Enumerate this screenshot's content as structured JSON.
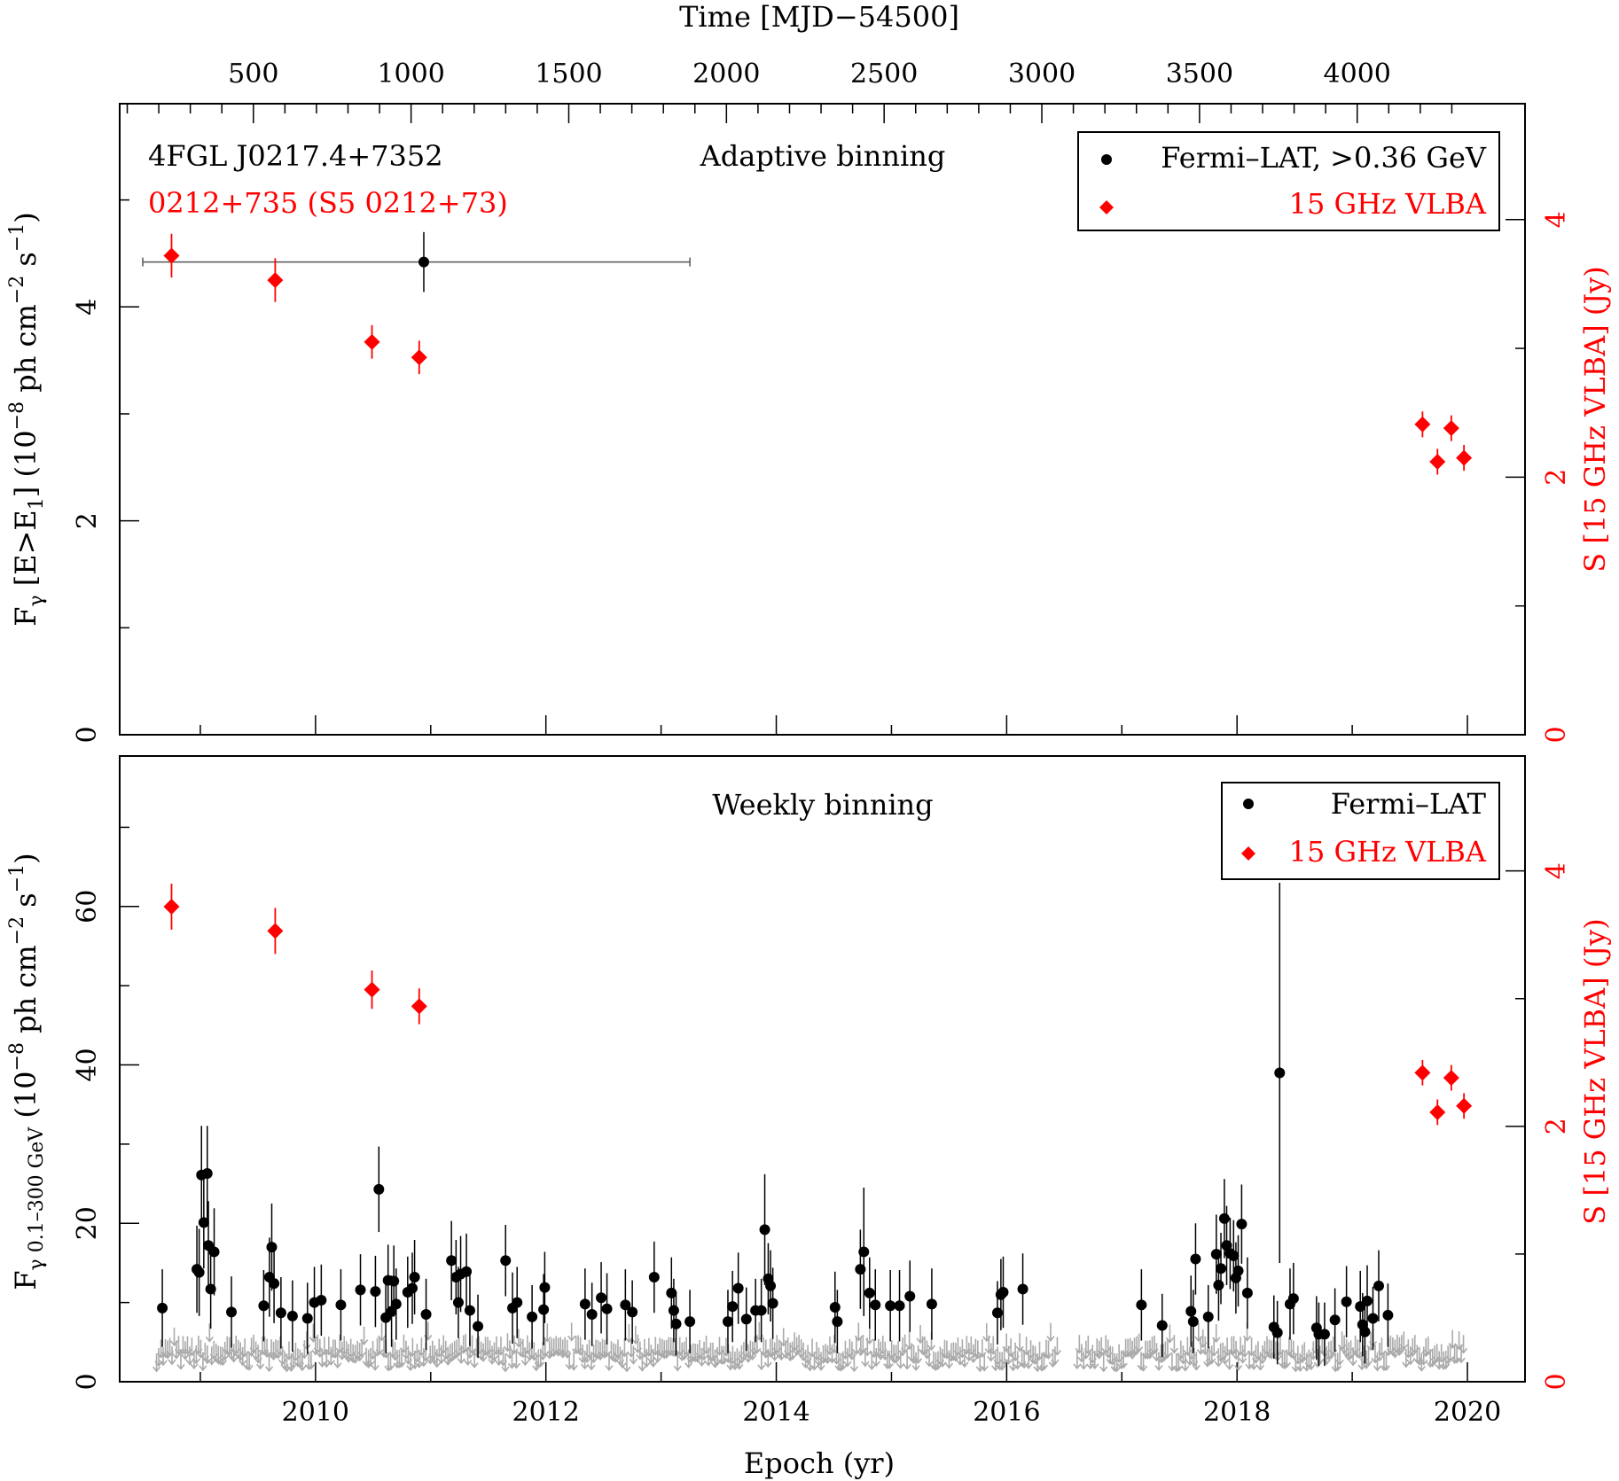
{
  "colors": {
    "fermi": "#000000",
    "vlba": "#ff0000",
    "upper_limit": "#aaaaaa",
    "axis": "#000000"
  },
  "top_axis": {
    "label": "Time [MJD−54500]",
    "ticks": [
      500,
      1000,
      1500,
      2000,
      2500,
      3000,
      3500,
      4000
    ],
    "tick_labels": [
      "500",
      "1000",
      "1500",
      "2000",
      "2500",
      "3000",
      "3500",
      "4000"
    ],
    "mjd_offset": 54500
  },
  "bottom_axis": {
    "label": "Epoch (yr)",
    "ticks": [
      2010,
      2012,
      2014,
      2016,
      2018,
      2020
    ],
    "tick_labels": [
      "2010",
      "2012",
      "2014",
      "2016",
      "2018",
      "2020"
    ],
    "xlim": [
      2008.3,
      2020.5
    ]
  },
  "panels": {
    "top": {
      "source_name": "4FGL J0217.4+7352",
      "radio_name": "0212+735 (S5 0212+73)",
      "binning_label": "Adaptive binning",
      "ylabel": {
        "main": "F",
        "sub1": "γ",
        "mid": " [E>E",
        "sub2": "1",
        "end": "] (10",
        "sup1": "−8",
        "end2": " ph cm",
        "sup2": "−2",
        "end3": " s",
        "sup3": "−1",
        "end4": ")"
      },
      "yticks": [
        0,
        2,
        4
      ],
      "ytick_labels": [
        "0",
        "2",
        "4"
      ],
      "ylim": [
        0,
        5.9
      ],
      "y2label": "S [15 GHz VLBA] (Jy)",
      "y2ticks": [
        0,
        2,
        4
      ],
      "y2tick_labels": [
        "0",
        "2",
        "4"
      ],
      "y2lim": [
        0,
        4.9
      ],
      "legend": {
        "fermi_label": "Fermi–LAT, >0.36 GeV",
        "vlba_label": "15 GHz VLBA"
      }
    },
    "bottom": {
      "binning_label": "Weekly binning",
      "ylabel": {
        "main": "F",
        "sub1": "γ 0.1–300 GeV",
        "end": " (10",
        "sup1": "−8",
        "end2": " ph cm",
        "sup2": "−2",
        "end3": " s",
        "sup3": "−1",
        "end4": ")"
      },
      "yticks": [
        0,
        20,
        40,
        60
      ],
      "ytick_labels": [
        "0",
        "20",
        "40",
        "60"
      ],
      "ylim": [
        0,
        79
      ],
      "y2label": "S [15 GHz VLBA] (Jy)",
      "y2ticks": [
        0,
        2,
        4
      ],
      "y2tick_labels": [
        "0",
        "2",
        "4"
      ],
      "y2lim": [
        0,
        4.9
      ],
      "legend": {
        "fermi_label": "Fermi–LAT",
        "vlba_label": "15 GHz VLBA"
      }
    }
  },
  "chart_data": [
    {
      "type": "scatter",
      "panel": "top",
      "series": [
        {
          "name": "Fermi–LAT, >0.36 GeV",
          "points": [
            {
              "x": 2010.94,
              "y": 4.42,
              "yerr": 0.28,
              "xmin": 2008.5,
              "xmax": 2013.25
            }
          ]
        },
        {
          "name": "15 GHz VLBA",
          "axis": "right",
          "points": [
            {
              "x": 2008.75,
              "y": 3.72,
              "yerr": 0.17
            },
            {
              "x": 2009.65,
              "y": 3.53,
              "yerr": 0.17
            },
            {
              "x": 2010.49,
              "y": 3.05,
              "yerr": 0.13
            },
            {
              "x": 2010.9,
              "y": 2.93,
              "yerr": 0.13
            },
            {
              "x": 2019.61,
              "y": 2.41,
              "yerr": 0.1
            },
            {
              "x": 2019.74,
              "y": 2.12,
              "yerr": 0.1
            },
            {
              "x": 2019.86,
              "y": 2.38,
              "yerr": 0.1
            },
            {
              "x": 2019.97,
              "y": 2.15,
              "yerr": 0.1
            }
          ]
        }
      ]
    },
    {
      "type": "scatter",
      "panel": "bottom",
      "series": [
        {
          "name": "Fermi–LAT",
          "points": [
            {
              "x": 2008.67,
              "y": 9.3,
              "e": 4.9
            },
            {
              "x": 2008.97,
              "y": 14.2,
              "e": 5.5
            },
            {
              "x": 2008.99,
              "y": 13.8,
              "e": 5.5
            },
            {
              "x": 2009.01,
              "y": 26.1,
              "e": 6.2
            },
            {
              "x": 2009.03,
              "y": 20.1,
              "e": 5.8
            },
            {
              "x": 2009.06,
              "y": 26.3,
              "e": 6.0
            },
            {
              "x": 2009.07,
              "y": 17.2,
              "e": 5.6
            },
            {
              "x": 2009.09,
              "y": 11.7,
              "e": 5.0
            },
            {
              "x": 2009.12,
              "y": 16.4,
              "e": 5.5
            },
            {
              "x": 2009.27,
              "y": 8.8,
              "e": 4.5
            },
            {
              "x": 2009.55,
              "y": 9.6,
              "e": 4.5
            },
            {
              "x": 2009.6,
              "y": 13.2,
              "e": 5.0
            },
            {
              "x": 2009.62,
              "y": 17.0,
              "e": 5.5
            },
            {
              "x": 2009.64,
              "y": 12.4,
              "e": 5.0
            },
            {
              "x": 2009.7,
              "y": 8.7,
              "e": 4.5
            },
            {
              "x": 2009.8,
              "y": 8.3,
              "e": 4.5
            },
            {
              "x": 2009.93,
              "y": 8.0,
              "e": 4.5
            },
            {
              "x": 2009.99,
              "y": 10.0,
              "e": 4.5
            },
            {
              "x": 2010.05,
              "y": 10.3,
              "e": 4.5
            },
            {
              "x": 2010.22,
              "y": 9.7,
              "e": 4.5
            },
            {
              "x": 2010.39,
              "y": 11.6,
              "e": 4.5
            },
            {
              "x": 2010.52,
              "y": 11.4,
              "e": 4.5
            },
            {
              "x": 2010.55,
              "y": 24.3,
              "e": 5.4
            },
            {
              "x": 2010.61,
              "y": 8.1,
              "e": 4.5
            },
            {
              "x": 2010.63,
              "y": 12.8,
              "e": 4.5
            },
            {
              "x": 2010.66,
              "y": 8.9,
              "e": 4.5
            },
            {
              "x": 2010.68,
              "y": 12.7,
              "e": 4.5
            },
            {
              "x": 2010.7,
              "y": 9.8,
              "e": 4.5
            },
            {
              "x": 2010.8,
              "y": 11.3,
              "e": 4.5
            },
            {
              "x": 2010.84,
              "y": 11.8,
              "e": 4.5
            },
            {
              "x": 2010.86,
              "y": 13.2,
              "e": 4.7
            },
            {
              "x": 2010.96,
              "y": 8.5,
              "e": 4.5
            },
            {
              "x": 2011.18,
              "y": 15.3,
              "e": 5.0
            },
            {
              "x": 2011.22,
              "y": 13.2,
              "e": 4.7
            },
            {
              "x": 2011.24,
              "y": 10.0,
              "e": 4.5
            },
            {
              "x": 2011.26,
              "y": 13.6,
              "e": 4.8
            },
            {
              "x": 2011.31,
              "y": 13.9,
              "e": 4.8
            },
            {
              "x": 2011.34,
              "y": 9.0,
              "e": 4.5
            },
            {
              "x": 2011.41,
              "y": 7.0,
              "e": 4.0
            },
            {
              "x": 2011.65,
              "y": 15.3,
              "e": 4.5
            },
            {
              "x": 2011.71,
              "y": 9.3,
              "e": 4.5
            },
            {
              "x": 2011.75,
              "y": 10.0,
              "e": 4.5
            },
            {
              "x": 2011.88,
              "y": 8.2,
              "e": 4.0
            },
            {
              "x": 2011.98,
              "y": 9.1,
              "e": 4.5
            },
            {
              "x": 2011.99,
              "y": 11.9,
              "e": 4.5
            },
            {
              "x": 2012.34,
              "y": 9.8,
              "e": 4.5
            },
            {
              "x": 2012.4,
              "y": 8.5,
              "e": 4.0
            },
            {
              "x": 2012.48,
              "y": 10.6,
              "e": 4.5
            },
            {
              "x": 2012.53,
              "y": 9.2,
              "e": 4.5
            },
            {
              "x": 2012.69,
              "y": 9.7,
              "e": 4.5
            },
            {
              "x": 2012.75,
              "y": 8.8,
              "e": 4.0
            },
            {
              "x": 2012.94,
              "y": 13.2,
              "e": 4.5
            },
            {
              "x": 2013.09,
              "y": 11.2,
              "e": 4.5
            },
            {
              "x": 2013.11,
              "y": 9.0,
              "e": 4.0
            },
            {
              "x": 2013.13,
              "y": 7.3,
              "e": 4.0
            },
            {
              "x": 2013.25,
              "y": 7.6,
              "e": 4.0
            },
            {
              "x": 2013.58,
              "y": 7.6,
              "e": 4.0
            },
            {
              "x": 2013.62,
              "y": 9.5,
              "e": 4.5
            },
            {
              "x": 2013.67,
              "y": 11.8,
              "e": 4.5
            },
            {
              "x": 2013.74,
              "y": 7.9,
              "e": 4.0
            },
            {
              "x": 2013.82,
              "y": 9.0,
              "e": 4.0
            },
            {
              "x": 2013.87,
              "y": 9.0,
              "e": 4.0
            },
            {
              "x": 2013.9,
              "y": 19.2,
              "e": 7.0
            },
            {
              "x": 2013.93,
              "y": 13.0,
              "e": 4.5
            },
            {
              "x": 2013.95,
              "y": 12.1,
              "e": 4.5
            },
            {
              "x": 2013.97,
              "y": 9.9,
              "e": 4.5
            },
            {
              "x": 2014.51,
              "y": 9.4,
              "e": 4.5
            },
            {
              "x": 2014.53,
              "y": 7.6,
              "e": 4.0
            },
            {
              "x": 2014.73,
              "y": 14.2,
              "e": 5.0
            },
            {
              "x": 2014.76,
              "y": 16.4,
              "e": 8.1
            },
            {
              "x": 2014.81,
              "y": 11.2,
              "e": 4.5
            },
            {
              "x": 2014.86,
              "y": 9.7,
              "e": 4.5
            },
            {
              "x": 2014.99,
              "y": 9.6,
              "e": 4.5
            },
            {
              "x": 2015.07,
              "y": 9.6,
              "e": 4.5
            },
            {
              "x": 2015.16,
              "y": 10.8,
              "e": 4.5
            },
            {
              "x": 2015.35,
              "y": 9.8,
              "e": 4.5
            },
            {
              "x": 2015.92,
              "y": 8.7,
              "e": 4.0
            },
            {
              "x": 2015.95,
              "y": 11.0,
              "e": 4.5
            },
            {
              "x": 2015.97,
              "y": 11.3,
              "e": 4.5
            },
            {
              "x": 2016.14,
              "y": 11.7,
              "e": 4.5
            },
            {
              "x": 2017.17,
              "y": 9.7,
              "e": 4.5
            },
            {
              "x": 2017.35,
              "y": 7.1,
              "e": 4.0
            },
            {
              "x": 2017.6,
              "y": 8.9,
              "e": 4.5
            },
            {
              "x": 2017.62,
              "y": 7.6,
              "e": 4.0
            },
            {
              "x": 2017.64,
              "y": 15.5,
              "e": 4.5
            },
            {
              "x": 2017.75,
              "y": 8.2,
              "e": 4.0
            },
            {
              "x": 2017.82,
              "y": 16.1,
              "e": 5.0
            },
            {
              "x": 2017.84,
              "y": 12.2,
              "e": 4.5
            },
            {
              "x": 2017.86,
              "y": 14.3,
              "e": 4.5
            },
            {
              "x": 2017.89,
              "y": 20.6,
              "e": 5.0
            },
            {
              "x": 2017.91,
              "y": 17.2,
              "e": 5.0
            },
            {
              "x": 2017.94,
              "y": 16.2,
              "e": 4.5
            },
            {
              "x": 2017.97,
              "y": 15.9,
              "e": 4.5
            },
            {
              "x": 2017.99,
              "y": 13.1,
              "e": 4.5
            },
            {
              "x": 2018.01,
              "y": 14.0,
              "e": 4.5
            },
            {
              "x": 2018.04,
              "y": 19.9,
              "e": 5.0
            },
            {
              "x": 2018.09,
              "y": 11.2,
              "e": 4.5
            },
            {
              "x": 2018.32,
              "y": 6.9,
              "e": 4.0
            },
            {
              "x": 2018.35,
              "y": 6.2,
              "e": 4.0
            },
            {
              "x": 2018.37,
              "y": 39.0,
              "e": 24.0
            },
            {
              "x": 2018.46,
              "y": 9.8,
              "e": 4.5
            },
            {
              "x": 2018.49,
              "y": 10.5,
              "e": 4.5
            },
            {
              "x": 2018.69,
              "y": 6.8,
              "e": 4.0
            },
            {
              "x": 2018.71,
              "y": 6.0,
              "e": 4.0
            },
            {
              "x": 2018.76,
              "y": 6.0,
              "e": 4.0
            },
            {
              "x": 2018.85,
              "y": 7.8,
              "e": 4.0
            },
            {
              "x": 2018.95,
              "y": 10.1,
              "e": 4.5
            },
            {
              "x": 2019.07,
              "y": 9.5,
              "e": 4.5
            },
            {
              "x": 2019.09,
              "y": 7.2,
              "e": 4.0
            },
            {
              "x": 2019.11,
              "y": 6.3,
              "e": 4.0
            },
            {
              "x": 2019.13,
              "y": 10.2,
              "e": 4.5
            },
            {
              "x": 2019.18,
              "y": 8.0,
              "e": 4.0
            },
            {
              "x": 2019.23,
              "y": 12.1,
              "e": 4.5
            },
            {
              "x": 2019.31,
              "y": 8.4,
              "e": 4.0
            }
          ]
        },
        {
          "name": "15 GHz VLBA",
          "axis": "right",
          "points": [
            {
              "x": 2008.75,
              "y": 3.72,
              "yerr": 0.18
            },
            {
              "x": 2009.65,
              "y": 3.53,
              "yerr": 0.18
            },
            {
              "x": 2010.49,
              "y": 3.07,
              "yerr": 0.15
            },
            {
              "x": 2010.9,
              "y": 2.94,
              "yerr": 0.14
            },
            {
              "x": 2019.61,
              "y": 2.42,
              "yerr": 0.1
            },
            {
              "x": 2019.74,
              "y": 2.11,
              "yerr": 0.1
            },
            {
              "x": 2019.86,
              "y": 2.38,
              "yerr": 0.1
            },
            {
              "x": 2019.97,
              "y": 2.16,
              "yerr": 0.1
            }
          ]
        }
      ],
      "upper_limits_note": "grey arrows: weekly upper limits, continuous 2008.6–2020.0 at roughly 2–5 (10^-8 ph cm^-2 s^-1)"
    }
  ]
}
